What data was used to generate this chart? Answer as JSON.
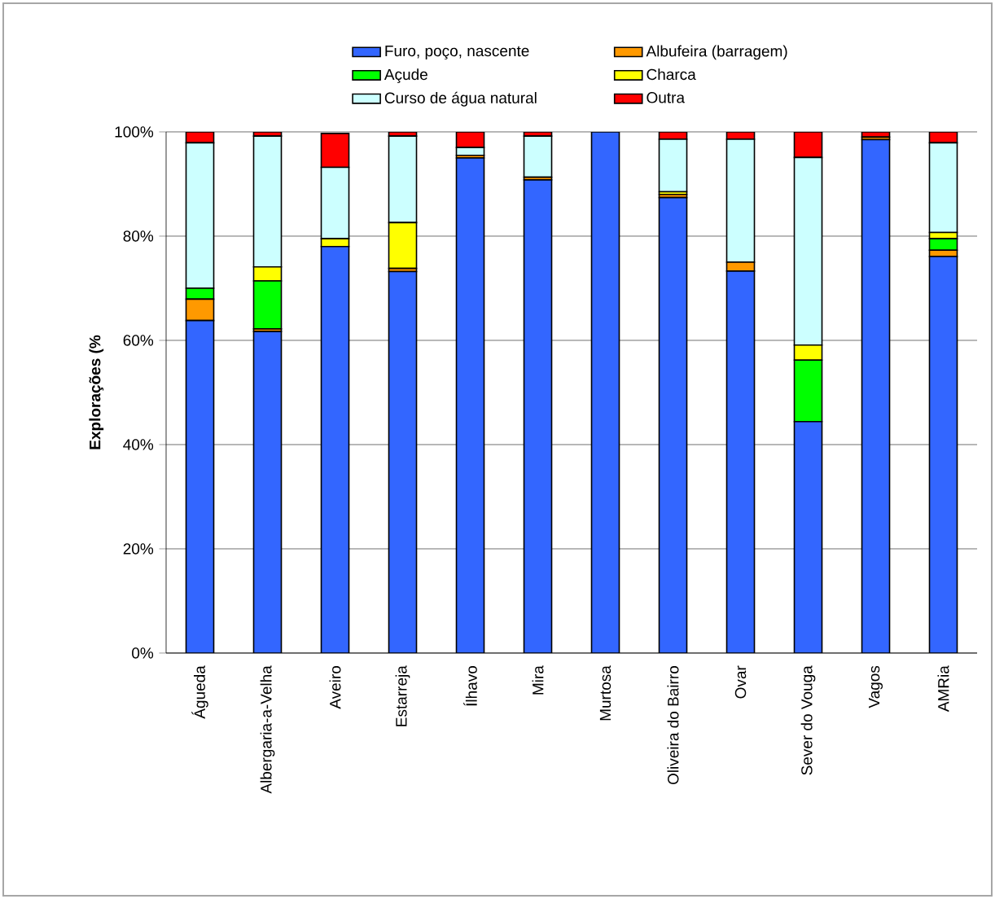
{
  "chart_data": {
    "type": "bar",
    "stacked": true,
    "ylabel": "**Explorações (%**",
    "categories": [
      "Águeda",
      "Albergaria-a-Velha",
      "Aveiro",
      "Estarreja",
      "Ílhavo",
      "Mira",
      "Murtosa",
      "Oliveira do Bairro",
      "Ovar",
      "Sever do Vouga",
      "Vagos",
      "AMRia"
    ],
    "series": [
      {
        "name": "Furo, poço, nascente",
        "color": "#3366ff",
        "values": [
          63.8,
          61.7,
          78.0,
          73.2,
          95.0,
          90.8,
          100,
          87.4,
          73.3,
          44.4,
          98.5,
          76.1
        ]
      },
      {
        "name": "Albufeira (barragem)",
        "color": "#ff9900",
        "values": [
          4.1,
          0.5,
          null,
          0.6,
          0.5,
          0.5,
          0,
          0.6,
          1.7,
          0,
          0.5,
          1.2
        ]
      },
      {
        "name": "Açude",
        "color": "#00ff00",
        "values": [
          2.1,
          9.2,
          0,
          0,
          0,
          0,
          0,
          0,
          0,
          11.8,
          0,
          2.2
        ]
      },
      {
        "name": "Charca",
        "color": "#ffff00",
        "values": [
          0,
          2.7,
          1.5,
          8.8,
          0,
          0,
          0,
          0.5,
          0,
          2.9,
          0,
          1.2
        ]
      },
      {
        "name": "Curso de água natural",
        "color": "#ccffff",
        "values": [
          27.9,
          25.1,
          13.7,
          16.6,
          1.5,
          7.9,
          0,
          10.1,
          23.6,
          36.0,
          0,
          17.2
        ]
      },
      {
        "name": "Outra",
        "color": "#ff0000",
        "values": [
          2.1,
          0.8,
          6.5,
          0.8,
          3.0,
          0.8,
          0,
          1.4,
          1.4,
          4.9,
          1.0,
          2.1
        ]
      }
    ],
    "ylim": [
      0,
      100
    ],
    "yticks": [
      {
        "value": 0,
        "label": "0%"
      },
      {
        "value": 20,
        "label": "20%"
      },
      {
        "value": 40,
        "label": "40%"
      },
      {
        "value": 60,
        "label": "60%"
      },
      {
        "value": 80,
        "label": "80%"
      },
      {
        "value": 100,
        "label": "100%"
      }
    ],
    "grid": "y",
    "legend": "top"
  }
}
